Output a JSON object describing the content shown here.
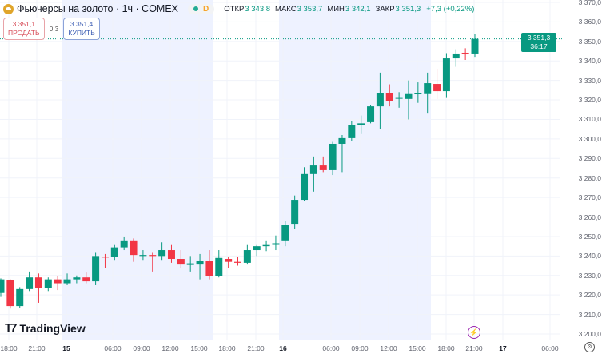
{
  "header": {
    "symbol_title": "Фьючерсы на золото · 1ч · COMEX",
    "status_label": "D",
    "ohlc": [
      {
        "label": "ОТКР",
        "value": "3 343,8"
      },
      {
        "label": "МАКС",
        "value": "3 353,7"
      },
      {
        "label": "МИН",
        "value": "3 342,1"
      },
      {
        "label": "ЗАКР",
        "value": "3 351,3"
      }
    ],
    "change": "+7,3 (+0,22%)"
  },
  "trade": {
    "sell_price": "3 351,1",
    "sell_label": "ПРОДАТЬ",
    "spread": "0,3",
    "buy_price": "3 351,4",
    "buy_label": "КУПИТЬ"
  },
  "current_price": {
    "price": "3 351,3",
    "countdown": "36:17"
  },
  "logo": "TradingView",
  "colors": {
    "up": "#089981",
    "down": "#f23645",
    "session_bg": "#eef2ff",
    "accent": "#089981"
  },
  "icons": [
    "gold-coin-icon",
    "market-status-dot-icon",
    "lightning-icon",
    "settings-icon",
    "tradingview-logo-icon"
  ],
  "price_axis": [
    "3 370,0",
    "3 360,0",
    "3 350,0",
    "3 340,0",
    "3 330,0",
    "3 320,0",
    "3 310,0",
    "3 300,0",
    "3 290,0",
    "3 280,0",
    "3 270,0",
    "3 260,0",
    "3 250,0",
    "3 240,0",
    "3 230,0",
    "3 220,0",
    "3 210,0",
    "3 200,0"
  ],
  "time_axis": [
    "18:00",
    "21:00",
    "15",
    "06:00",
    "09:00",
    "12:00",
    "15:00",
    "18:00",
    "21:00",
    "16",
    "06:00",
    "09:00",
    "12:00",
    "15:00",
    "18:00",
    "21:00",
    "17",
    "06:00"
  ],
  "chart_data": {
    "type": "candlestick",
    "ylim": [
      3200,
      3370
    ],
    "candles": [
      [
        3221,
        3228.5,
        3219,
        3228
      ],
      [
        3227.6,
        3228,
        3213,
        3214.3
      ],
      [
        3214.3,
        3224,
        3213.5,
        3223
      ],
      [
        3223,
        3232,
        3222,
        3229
      ],
      [
        3229,
        3231,
        3216,
        3223.5
      ],
      [
        3223.5,
        3229,
        3222,
        3228
      ],
      [
        3228,
        3229.5,
        3222.5,
        3226
      ],
      [
        3226,
        3231,
        3225,
        3228
      ],
      [
        3228,
        3230,
        3226,
        3229
      ],
      [
        3229,
        3231.5,
        3226,
        3227
      ],
      [
        3227,
        3242,
        3225,
        3240
      ],
      [
        3239.6,
        3241,
        3234,
        3239.5
      ],
      [
        3239.6,
        3246,
        3238,
        3244.4
      ],
      [
        3244.4,
        3250,
        3243,
        3248
      ],
      [
        3248,
        3249,
        3237,
        3240.5
      ],
      [
        3240,
        3243,
        3238,
        3240.5
      ],
      [
        3240.5,
        3242,
        3232,
        3240
      ],
      [
        3240,
        3247,
        3238,
        3243
      ],
      [
        3243,
        3246,
        3236.5,
        3238.5
      ],
      [
        3238.5,
        3243,
        3234,
        3236
      ],
      [
        3236,
        3240,
        3232,
        3236.2
      ],
      [
        3236,
        3241,
        3228,
        3237.5
      ],
      [
        3237.6,
        3243,
        3228,
        3229.5
      ],
      [
        3229.5,
        3243,
        3229,
        3239
      ],
      [
        3238.5,
        3239.5,
        3234,
        3237
      ],
      [
        3237,
        3239.5,
        3235,
        3236.5
      ],
      [
        3236.5,
        3246,
        3236,
        3243
      ],
      [
        3243,
        3246,
        3240,
        3245
      ],
      [
        3245,
        3248,
        3242.5,
        3246
      ],
      [
        3246.3,
        3250.5,
        3243,
        3246.5
      ],
      [
        3248,
        3258,
        3245,
        3256
      ],
      [
        3256.5,
        3271,
        3254,
        3268.8
      ],
      [
        3268.8,
        3285.5,
        3268,
        3282
      ],
      [
        3282,
        3291,
        3273,
        3286.4
      ],
      [
        3286.4,
        3291,
        3283,
        3284
      ],
      [
        3284,
        3298.5,
        3281.5,
        3297.5
      ],
      [
        3297.5,
        3302,
        3283,
        3300.4
      ],
      [
        3300.4,
        3309,
        3299,
        3307.3
      ],
      [
        3307.3,
        3312,
        3302.5,
        3308
      ],
      [
        3308.6,
        3317.5,
        3308,
        3316.7
      ],
      [
        3316.7,
        3334,
        3305,
        3323.7
      ],
      [
        3323.7,
        3328,
        3316.7,
        3319.6
      ],
      [
        3320.8,
        3324,
        3316,
        3321
      ],
      [
        3320.5,
        3330,
        3310,
        3323
      ],
      [
        3323,
        3329,
        3318.5,
        3323.3
      ],
      [
        3323,
        3334,
        3313,
        3328.6
      ],
      [
        3328.2,
        3336,
        3320.5,
        3324.5
      ],
      [
        3324.5,
        3344,
        3321,
        3341.3
      ],
      [
        3341.3,
        3346,
        3337,
        3343.8
      ],
      [
        3344.2,
        3346.5,
        3340.5,
        3343.8
      ],
      [
        3343.8,
        3353.7,
        3342.1,
        3351.3
      ]
    ]
  }
}
